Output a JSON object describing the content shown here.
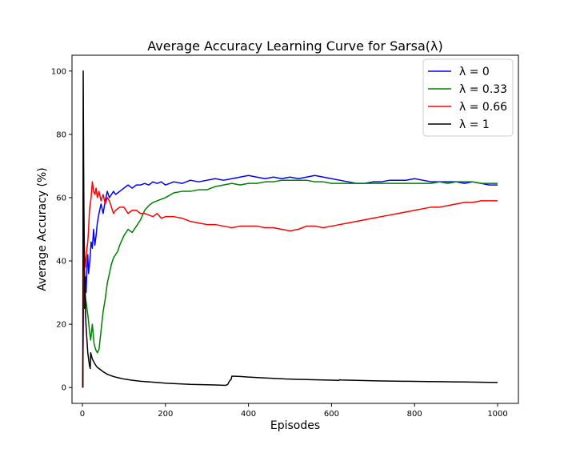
{
  "chart_data": {
    "type": "line",
    "title": "Average Accuracy Learning Curve for Sarsa(λ)",
    "xlabel": "Episodes",
    "ylabel": "Average Accuracy (%)",
    "xlim": [
      -25,
      1050
    ],
    "ylim": [
      -5,
      105
    ],
    "xticks": [
      0,
      200,
      400,
      600,
      800,
      1000
    ],
    "yticks": [
      0,
      20,
      40,
      60,
      80,
      100
    ],
    "legend_position": "top-right",
    "grid": false,
    "series": [
      {
        "name": "λ = 0",
        "color": "#0000ff",
        "x": [
          1,
          3,
          5,
          7,
          9,
          11,
          13,
          15,
          18,
          21,
          24,
          27,
          30,
          33,
          36,
          40,
          45,
          50,
          55,
          60,
          65,
          70,
          75,
          80,
          90,
          100,
          110,
          120,
          130,
          140,
          150,
          160,
          170,
          180,
          190,
          200,
          220,
          240,
          260,
          280,
          300,
          320,
          340,
          360,
          380,
          400,
          420,
          440,
          460,
          480,
          500,
          520,
          540,
          560,
          580,
          600,
          620,
          640,
          660,
          680,
          700,
          720,
          740,
          760,
          780,
          800,
          820,
          840,
          860,
          880,
          900,
          920,
          940,
          960,
          980,
          1000
        ],
        "y": [
          0,
          33,
          25,
          35,
          30,
          38,
          42,
          36,
          40,
          46,
          44,
          50,
          45,
          48,
          52,
          55,
          58,
          55,
          59,
          62,
          60,
          61,
          62,
          61,
          62,
          63,
          64,
          63,
          64,
          64,
          64.5,
          64,
          65,
          64.5,
          65,
          64,
          65,
          64.5,
          65.5,
          65,
          65.5,
          66,
          65.5,
          66,
          66.5,
          67,
          66.5,
          66,
          66.5,
          66,
          66.5,
          66,
          66.5,
          67,
          66.5,
          66,
          65.5,
          65,
          64.5,
          64.5,
          65,
          65,
          65.5,
          65.5,
          65.5,
          66,
          65.5,
          65,
          65,
          65,
          65,
          64.5,
          65,
          64.5,
          64,
          64
        ]
      },
      {
        "name": "λ = 0.33",
        "color": "#008000",
        "x": [
          1,
          3,
          5,
          8,
          11,
          14,
          17,
          20,
          24,
          28,
          32,
          36,
          40,
          45,
          50,
          55,
          60,
          65,
          70,
          75,
          80,
          85,
          90,
          100,
          110,
          120,
          130,
          140,
          150,
          160,
          170,
          180,
          190,
          200,
          220,
          240,
          260,
          280,
          300,
          320,
          340,
          360,
          380,
          400,
          420,
          440,
          460,
          480,
          500,
          520,
          540,
          560,
          580,
          600,
          620,
          640,
          660,
          680,
          700,
          720,
          740,
          760,
          780,
          800,
          820,
          840,
          860,
          880,
          900,
          920,
          940,
          960,
          980,
          1000
        ],
        "y": [
          0,
          50,
          33,
          28,
          25,
          22,
          18,
          15,
          20,
          14,
          12,
          11,
          12,
          18,
          24,
          28,
          33,
          36,
          39,
          41,
          42,
          43,
          45,
          48,
          50,
          49,
          51,
          53,
          56,
          57.5,
          58.5,
          59,
          59.5,
          60,
          61.5,
          62,
          62,
          62.5,
          62.5,
          63.5,
          64,
          64.5,
          64,
          64.5,
          64.5,
          65,
          65,
          65.5,
          65.5,
          65.5,
          65.5,
          65,
          65,
          64.5,
          64.5,
          64.5,
          64.5,
          64.5,
          64.5,
          64.5,
          64.5,
          64.5,
          64.5,
          64.5,
          64.5,
          64.5,
          65,
          64.5,
          65,
          65,
          65,
          64.5,
          64.5,
          64.5
        ]
      },
      {
        "name": "λ = 0.66",
        "color": "#ff0000",
        "x": [
          1,
          3,
          5,
          7,
          9,
          11,
          13,
          15,
          17,
          19,
          21,
          24,
          27,
          30,
          33,
          36,
          40,
          45,
          50,
          55,
          60,
          65,
          70,
          75,
          80,
          90,
          100,
          110,
          120,
          130,
          140,
          150,
          160,
          170,
          180,
          190,
          200,
          220,
          240,
          260,
          280,
          300,
          320,
          340,
          360,
          380,
          400,
          420,
          440,
          460,
          480,
          500,
          520,
          540,
          560,
          580,
          600,
          620,
          640,
          660,
          680,
          700,
          720,
          740,
          760,
          780,
          800,
          820,
          840,
          860,
          880,
          900,
          920,
          940,
          960,
          980,
          1000
        ],
        "y": [
          0,
          60,
          43,
          38,
          41,
          44,
          46,
          50,
          56,
          58,
          60,
          65,
          62,
          61,
          63,
          60,
          62,
          59,
          61,
          58,
          60,
          59,
          57,
          55,
          56,
          57,
          57,
          55,
          56,
          56,
          55,
          55,
          54.5,
          54,
          55,
          53.5,
          54,
          54,
          53.5,
          52.5,
          52,
          51.5,
          51.5,
          51,
          50.5,
          51,
          51,
          51,
          50.5,
          50.5,
          50,
          49.5,
          50,
          51,
          51,
          50.5,
          51,
          51.5,
          52,
          52.5,
          53,
          53.5,
          54,
          54.5,
          55,
          55.5,
          56,
          56.5,
          57,
          57,
          57.5,
          58,
          58.5,
          58.5,
          59,
          59,
          59
        ]
      },
      {
        "name": "λ = 1",
        "color": "#000000",
        "x": [
          1,
          2,
          3,
          4,
          5,
          6,
          7,
          8,
          9,
          10,
          11,
          12,
          13,
          14,
          15,
          16,
          17,
          18,
          19,
          20,
          22,
          24,
          26,
          28,
          30,
          35,
          40,
          45,
          50,
          60,
          70,
          80,
          90,
          100,
          120,
          140,
          160,
          180,
          200,
          230,
          260,
          290,
          320,
          345,
          350,
          352,
          355,
          358,
          360,
          380,
          400,
          430,
          460,
          490,
          520,
          550,
          580,
          610,
          618,
          620,
          622,
          650,
          680,
          710,
          740,
          770,
          800,
          830,
          860,
          890,
          920,
          950,
          980,
          1000
        ],
        "y": [
          0,
          100,
          72,
          50,
          38,
          31,
          27,
          22,
          19,
          17,
          15,
          13,
          11,
          10,
          9,
          8,
          7,
          6.5,
          6,
          11,
          10,
          9,
          8.5,
          8,
          7.5,
          6.5,
          6,
          5.5,
          5,
          4.2,
          3.7,
          3.3,
          3,
          2.7,
          2.3,
          2.0,
          1.8,
          1.6,
          1.4,
          1.2,
          1.0,
          0.9,
          0.8,
          0.7,
          1.0,
          1.5,
          2.2,
          2.5,
          3.6,
          3.5,
          3.3,
          3.1,
          2.9,
          2.7,
          2.6,
          2.5,
          2.4,
          2.3,
          2.25,
          2.5,
          2.4,
          2.3,
          2.2,
          2.1,
          2.05,
          2.0,
          1.95,
          1.9,
          1.85,
          1.8,
          1.75,
          1.7,
          1.65,
          1.6
        ]
      }
    ]
  }
}
